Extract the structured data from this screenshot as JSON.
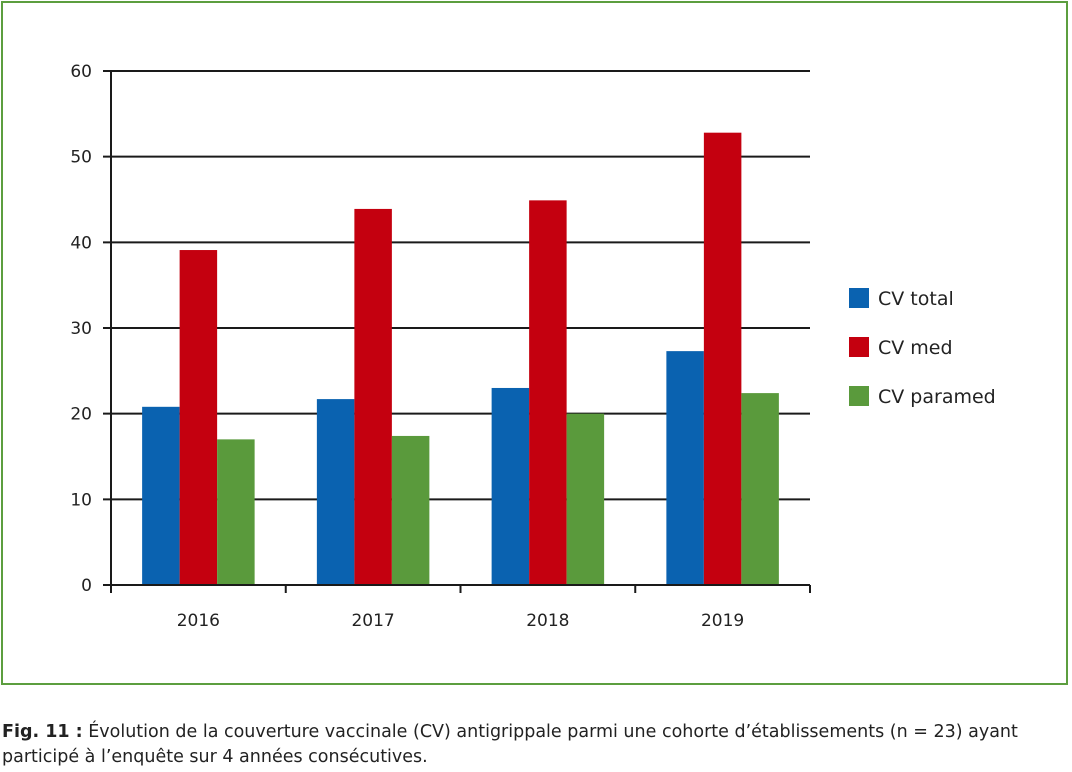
{
  "chart_data": {
    "type": "bar",
    "categories": [
      "2016",
      "2017",
      "2018",
      "2019"
    ],
    "series": [
      {
        "name": "CV total",
        "color": "#0a62b0",
        "values": [
          20.8,
          21.7,
          23.0,
          27.3
        ]
      },
      {
        "name": "CV med",
        "color": "#c4000f",
        "values": [
          39.1,
          43.9,
          44.9,
          52.8
        ]
      },
      {
        "name": "CV paramed",
        "color": "#5a9a3c",
        "values": [
          17.0,
          17.4,
          20.0,
          22.4
        ]
      }
    ],
    "ylim": [
      0,
      60
    ],
    "yticks": [
      0,
      10,
      20,
      30,
      40,
      50,
      60
    ],
    "grid": true,
    "legend": "right"
  },
  "caption": {
    "label": "Fig. 11 :",
    "text": " Évolution de la couverture vaccinale (CV) antigrippale parmi une cohorte d’établissements (n = 23) ayant participé à l’enquête sur 4 années consécutives."
  }
}
